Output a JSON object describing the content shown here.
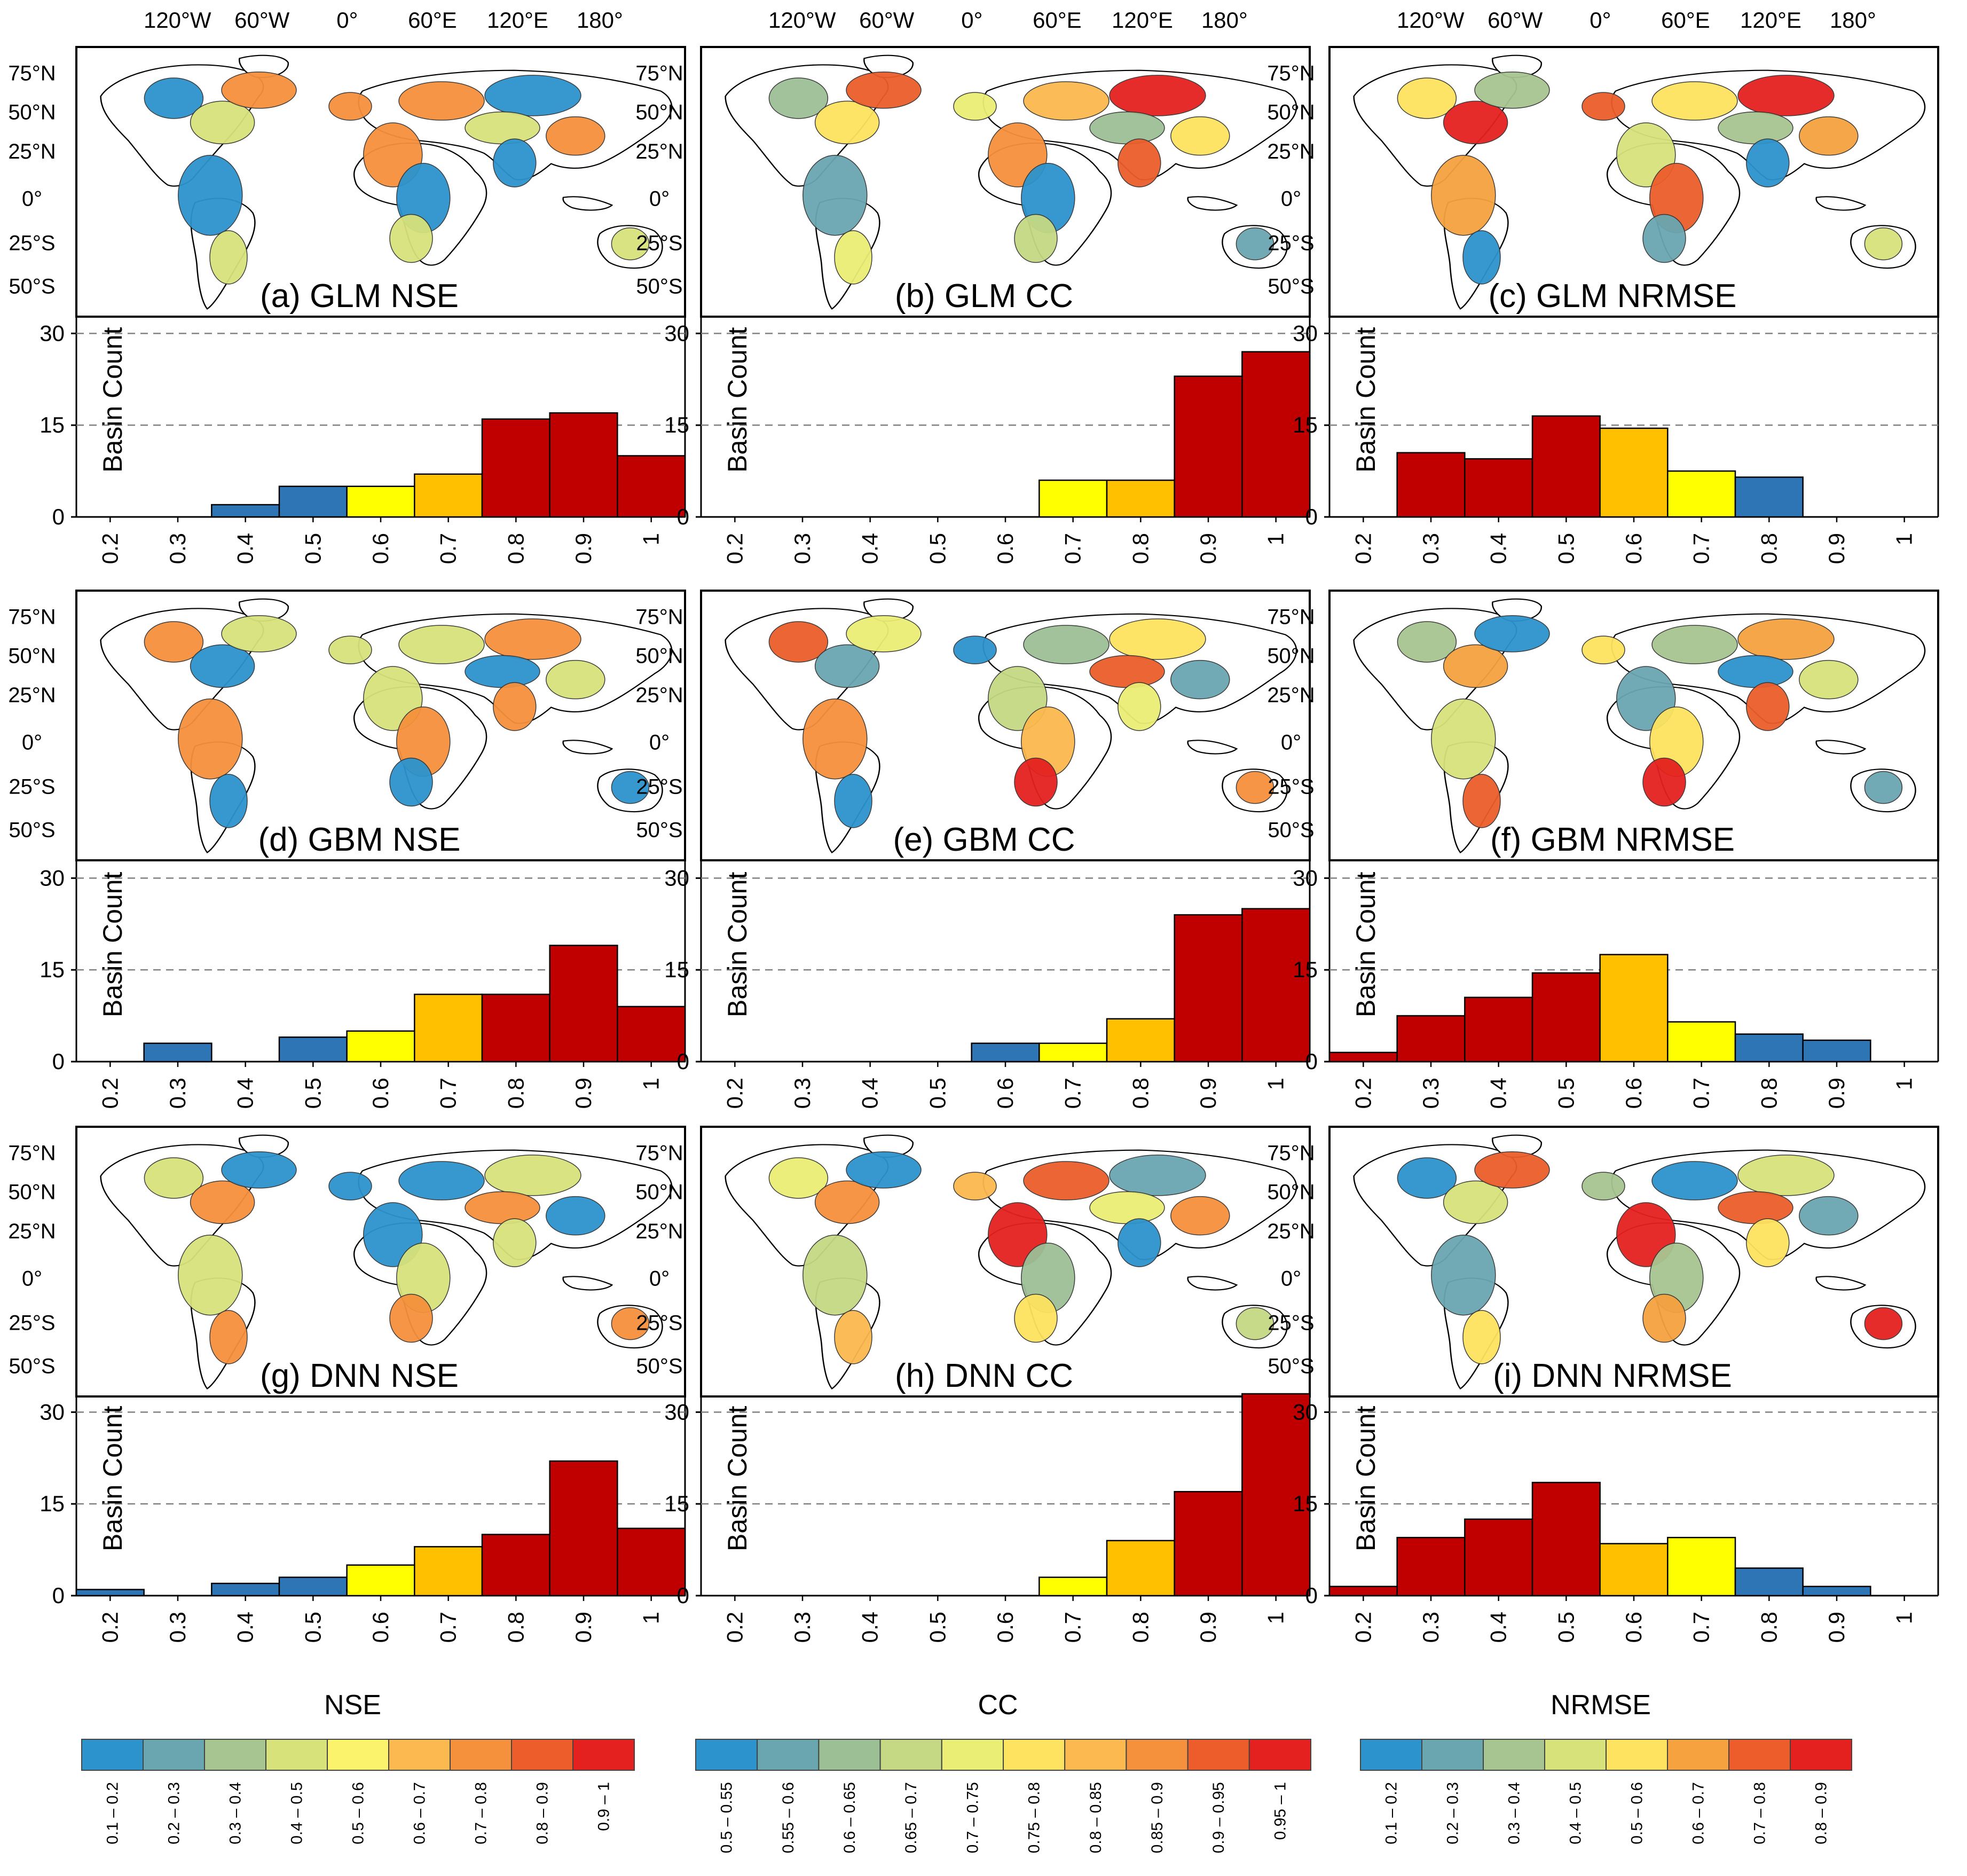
{
  "figure": {
    "lon_ticks": [
      "120°W",
      "60°W",
      "0°",
      "60°E",
      "120°E",
      "180°"
    ],
    "lat_ticks": [
      "75°N",
      "50°N",
      "25°N",
      "0°",
      "25°S",
      "50°S"
    ],
    "y_axis_label": "Basin Count",
    "y_ticks": [
      "0",
      "15",
      "30"
    ]
  },
  "colors": {
    "blue": "#2e75b6",
    "yellow": "#ffff00",
    "amber": "#ffc000",
    "darkred": "#c00000",
    "land": "#ffffff",
    "coast": "#000000",
    "grid": "#808080"
  },
  "chart_data": [
    {
      "id": "a",
      "type": "bar",
      "title": "(a)  GLM NSE",
      "model": "GLM",
      "metric": "NSE",
      "ylabel": "Basin Count",
      "ylim": [
        0,
        33
      ],
      "categories": [
        "0.2",
        "0.3",
        "0.4",
        "0.5",
        "0.6",
        "0.7",
        "0.8",
        "0.9",
        "1"
      ],
      "values": [
        0,
        0,
        2,
        5,
        5,
        7,
        16,
        17,
        10
      ],
      "bar_colors": [
        "#2e75b6",
        "#2e75b6",
        "#2e75b6",
        "#2e75b6",
        "#ffff00",
        "#ffc000",
        "#c00000",
        "#c00000",
        "#c00000"
      ]
    },
    {
      "id": "b",
      "type": "bar",
      "title": "(b)   GLM CC",
      "model": "GLM",
      "metric": "CC",
      "ylabel": "Basin Count",
      "ylim": [
        0,
        33
      ],
      "categories": [
        "0.2",
        "0.3",
        "0.4",
        "0.5",
        "0.6",
        "0.7",
        "0.8",
        "0.9",
        "1"
      ],
      "values": [
        0,
        0,
        0,
        0,
        0,
        6,
        6,
        23,
        27
      ],
      "bar_colors": [
        "#2e75b6",
        "#2e75b6",
        "#2e75b6",
        "#2e75b6",
        "#2e75b6",
        "#ffff00",
        "#ffc000",
        "#c00000",
        "#c00000"
      ]
    },
    {
      "id": "c",
      "type": "bar",
      "title": "(c)  GLM NRMSE",
      "model": "GLM",
      "metric": "NRMSE",
      "ylabel": "Basin Count",
      "ylim": [
        0,
        33
      ],
      "categories": [
        "0.2",
        "0.3",
        "0.4",
        "0.5",
        "0.6",
        "0.7",
        "0.8",
        "0.9",
        "1"
      ],
      "values": [
        0,
        10.5,
        9.5,
        16.5,
        14.5,
        7.5,
        6.5,
        0,
        0
      ],
      "bar_colors": [
        "#c00000",
        "#c00000",
        "#c00000",
        "#c00000",
        "#ffc000",
        "#ffff00",
        "#2e75b6",
        "#2e75b6",
        "#2e75b6"
      ]
    },
    {
      "id": "d",
      "type": "bar",
      "title": "(d)  GBM NSE",
      "model": "GBM",
      "metric": "NSE",
      "ylabel": "Basin Count",
      "ylim": [
        0,
        33
      ],
      "categories": [
        "0.2",
        "0.3",
        "0.4",
        "0.5",
        "0.6",
        "0.7",
        "0.8",
        "0.9",
        "1"
      ],
      "values": [
        0,
        3,
        0,
        4,
        5,
        11,
        11,
        19,
        9
      ],
      "bar_colors": [
        "#2e75b6",
        "#2e75b6",
        "#2e75b6",
        "#2e75b6",
        "#ffff00",
        "#ffc000",
        "#c00000",
        "#c00000",
        "#c00000"
      ]
    },
    {
      "id": "e",
      "type": "bar",
      "title": "(e)  GBM CC",
      "model": "GBM",
      "metric": "CC",
      "ylabel": "Basin Count",
      "ylim": [
        0,
        33
      ],
      "categories": [
        "0.2",
        "0.3",
        "0.4",
        "0.5",
        "0.6",
        "0.7",
        "0.8",
        "0.9",
        "1"
      ],
      "values": [
        0,
        0,
        0,
        0,
        3,
        3,
        7,
        24,
        25
      ],
      "bar_colors": [
        "#2e75b6",
        "#2e75b6",
        "#2e75b6",
        "#2e75b6",
        "#2e75b6",
        "#ffff00",
        "#ffc000",
        "#c00000",
        "#c00000"
      ]
    },
    {
      "id": "f",
      "type": "bar",
      "title": "(f)  GBM NRMSE",
      "model": "GBM",
      "metric": "NRMSE",
      "ylabel": "Basin Count",
      "ylim": [
        0,
        33
      ],
      "categories": [
        "0.2",
        "0.3",
        "0.4",
        "0.5",
        "0.6",
        "0.7",
        "0.8",
        "0.9",
        "1"
      ],
      "values": [
        1.5,
        7.5,
        10.5,
        14.5,
        17.5,
        6.5,
        4.5,
        3.5,
        0
      ],
      "bar_colors": [
        "#c00000",
        "#c00000",
        "#c00000",
        "#c00000",
        "#ffc000",
        "#ffff00",
        "#2e75b6",
        "#2e75b6",
        "#2e75b6"
      ]
    },
    {
      "id": "g",
      "type": "bar",
      "title": "(g)  DNN NSE",
      "model": "DNN",
      "metric": "NSE",
      "ylabel": "Basin Count",
      "ylim": [
        0,
        33
      ],
      "categories": [
        "0.2",
        "0.3",
        "0.4",
        "0.5",
        "0.6",
        "0.7",
        "0.8",
        "0.9",
        "1"
      ],
      "values": [
        1,
        0,
        2,
        3,
        5,
        8,
        10,
        22,
        11
      ],
      "bar_colors": [
        "#2e75b6",
        "#2e75b6",
        "#2e75b6",
        "#2e75b6",
        "#ffff00",
        "#ffc000",
        "#c00000",
        "#c00000",
        "#c00000"
      ]
    },
    {
      "id": "h",
      "type": "bar",
      "title": "(h)   DNN CC",
      "model": "DNN",
      "metric": "CC",
      "ylabel": "Basin Count",
      "ylim": [
        0,
        33
      ],
      "categories": [
        "0.2",
        "0.3",
        "0.4",
        "0.5",
        "0.6",
        "0.7",
        "0.8",
        "0.9",
        "1"
      ],
      "values": [
        0,
        0,
        0,
        0,
        0,
        3,
        9,
        17,
        33
      ],
      "bar_colors": [
        "#2e75b6",
        "#2e75b6",
        "#2e75b6",
        "#2e75b6",
        "#2e75b6",
        "#ffff00",
        "#ffc000",
        "#c00000",
        "#c00000"
      ]
    },
    {
      "id": "i",
      "type": "bar",
      "title": "(i)  DNN NRMSE",
      "model": "DNN",
      "metric": "NRMSE",
      "ylabel": "Basin Count",
      "ylim": [
        0,
        33
      ],
      "categories": [
        "0.2",
        "0.3",
        "0.4",
        "0.5",
        "0.6",
        "0.7",
        "0.8",
        "0.9",
        "1"
      ],
      "values": [
        1.5,
        9.5,
        12.5,
        18.5,
        8.5,
        9.5,
        4.5,
        1.5,
        0
      ],
      "bar_colors": [
        "#c00000",
        "#c00000",
        "#c00000",
        "#c00000",
        "#ffc000",
        "#ffff00",
        "#2e75b6",
        "#2e75b6",
        "#2e75b6"
      ]
    }
  ],
  "legends": [
    {
      "title": "NSE",
      "labels": [
        "0.1 – 0.2",
        "0.2 – 0.3",
        "0.3 – 0.4",
        "0.4 – 0.5",
        "0.5 – 0.6",
        "0.6 – 0.7",
        "0.7 – 0.8",
        "0.8 – 0.9",
        "0.9 – 1"
      ],
      "colors": [
        "#2c93cd",
        "#6aa6b0",
        "#a7c591",
        "#d7e27b",
        "#fbf36b",
        "#fbb94f",
        "#f5903c",
        "#ec5d2b",
        "#e4211f"
      ]
    },
    {
      "title": "CC",
      "labels": [
        "0.5 – 0.55",
        "0.55 – 0.6",
        "0.6 – 0.65",
        "0.65 – 0.7",
        "0.7 – 0.75",
        "0.75 – 0.8",
        "0.8 – 0.85",
        "0.85 – 0.9",
        "0.9 – 0.95",
        "0.95 – 1"
      ],
      "colors": [
        "#2c93cd",
        "#6aa6b0",
        "#9cbf96",
        "#c5d984",
        "#eaee74",
        "#fde35f",
        "#fbb94f",
        "#f5903c",
        "#ec5d2b",
        "#e4211f"
      ]
    },
    {
      "title": "NRMSE",
      "labels": [
        "0.1 – 0.2",
        "0.2 – 0.3",
        "0.3 – 0.4",
        "0.4 – 0.5",
        "0.5 – 0.6",
        "0.6 – 0.7",
        "0.7 – 0.8",
        "0.8 – 0.9"
      ],
      "colors": [
        "#2c93cd",
        "#6aa6b0",
        "#a7c591",
        "#d7e27b",
        "#fde35f",
        "#f5a23f",
        "#ec5d2b",
        "#e4211f"
      ]
    }
  ]
}
